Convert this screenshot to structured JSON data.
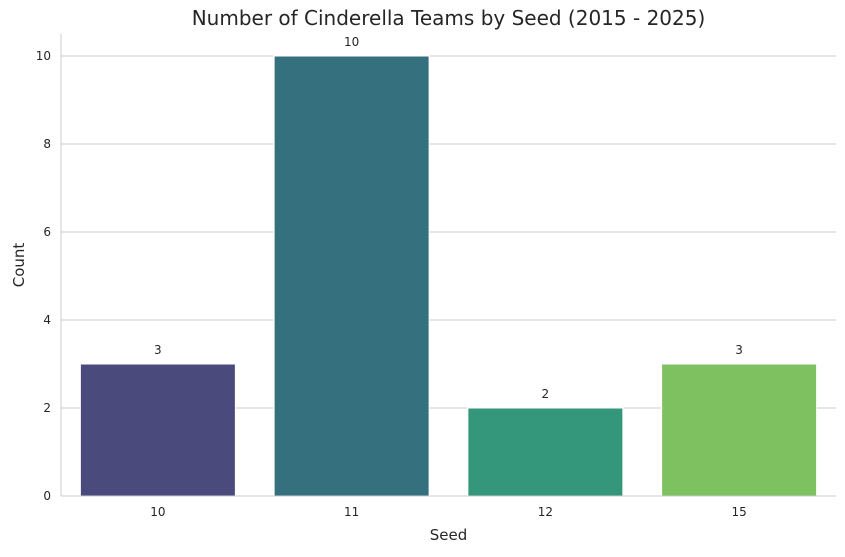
{
  "chart_data": {
    "type": "bar",
    "title": "Number of Cinderella Teams by Seed (2015 - 2025)",
    "xlabel": "Seed",
    "ylabel": "Count",
    "categories": [
      "10",
      "11",
      "12",
      "15"
    ],
    "values": [
      3,
      10,
      2,
      3
    ],
    "data_labels": [
      "3",
      "10",
      "2",
      "3"
    ],
    "colors": [
      "#4a4a7c",
      "#35707f",
      "#34967a",
      "#7dc160"
    ],
    "ylim": [
      0,
      10.5
    ],
    "yticks": [
      0,
      2,
      4,
      6,
      8,
      10
    ],
    "grid": "y",
    "legend": "none"
  }
}
